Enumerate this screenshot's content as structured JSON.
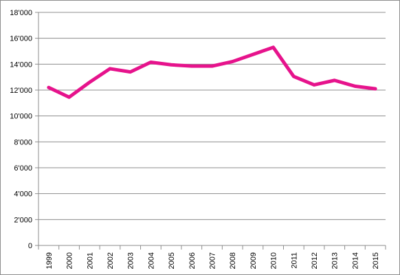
{
  "chart_data": {
    "type": "line",
    "categories": [
      "1999",
      "2000",
      "2001",
      "2002",
      "2003",
      "2004",
      "2005",
      "2006",
      "2007",
      "2008",
      "2009",
      "2010",
      "2011",
      "2012",
      "2013",
      "2014",
      "2015"
    ],
    "series": [
      {
        "values": [
          12200,
          11450,
          12600,
          13650,
          13400,
          14150,
          13950,
          13850,
          13850,
          14200,
          14750,
          15300,
          13050,
          12400,
          12750,
          12300,
          12100
        ]
      }
    ],
    "ylim": [
      0,
      18000
    ],
    "yticks": [
      0,
      2000,
      4000,
      6000,
      8000,
      10000,
      12000,
      14000,
      16000,
      18000
    ],
    "ytick_labels": [
      "0",
      "2'000",
      "4'000",
      "6'000",
      "8'000",
      "10'000",
      "12'000",
      "14'000",
      "16'000",
      "18'000"
    ],
    "xlabel": "",
    "ylabel": "",
    "title": "",
    "grid": true,
    "legend": "none",
    "colors": {
      "line": "#e6138c",
      "grid": "#8c8c8c",
      "axis": "#8c8c8c"
    }
  }
}
